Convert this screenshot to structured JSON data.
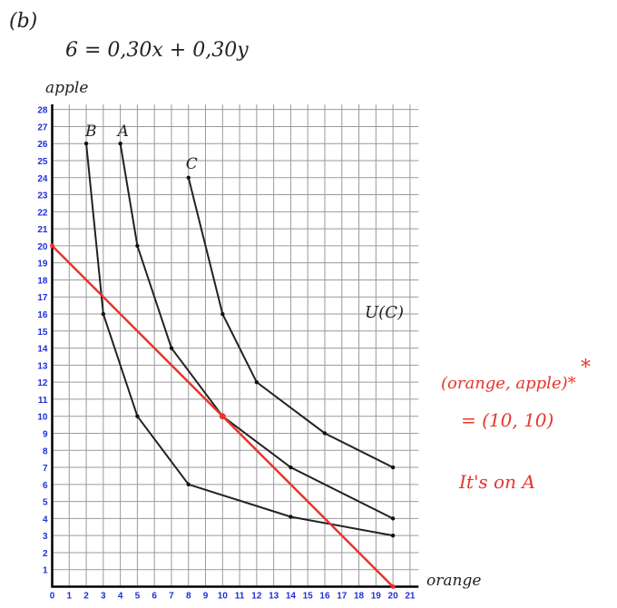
{
  "part_label": "(b)",
  "equation": "6 = 0,30x + 0,30y",
  "annotations": {
    "curve_c_label": "U(C)",
    "optimum_line1": "(orange, apple)*",
    "optimum_line2": "= (10, 10)",
    "conclusion": "It's on A"
  },
  "colors": {
    "curves": "#222222",
    "budget": "#e8342c",
    "ticks": "#1f2fd6",
    "grid": "#9a9a9a"
  },
  "chart_data": {
    "type": "line",
    "xlabel": "orange",
    "ylabel": "apple",
    "xlim": [
      0,
      21
    ],
    "ylim": [
      0,
      28
    ],
    "grid": true,
    "xticks": [
      0,
      1,
      2,
      3,
      4,
      5,
      6,
      7,
      8,
      9,
      10,
      11,
      12,
      13,
      14,
      15,
      16,
      17,
      18,
      19,
      20,
      21
    ],
    "yticks": [
      1,
      2,
      3,
      4,
      5,
      6,
      7,
      8,
      9,
      10,
      11,
      12,
      13,
      14,
      15,
      16,
      17,
      18,
      19,
      20,
      21,
      22,
      23,
      24,
      25,
      26,
      27,
      28
    ],
    "series": [
      {
        "name": "B",
        "color": "#222222",
        "points": [
          [
            2,
            26
          ],
          [
            3,
            16
          ],
          [
            5,
            10
          ],
          [
            8,
            6
          ],
          [
            14,
            4.1
          ],
          [
            20,
            3
          ]
        ]
      },
      {
        "name": "A",
        "color": "#222222",
        "points": [
          [
            4,
            26
          ],
          [
            5,
            20
          ],
          [
            7,
            14
          ],
          [
            10,
            10
          ],
          [
            14,
            7
          ],
          [
            20,
            4
          ]
        ]
      },
      {
        "name": "C",
        "color": "#222222",
        "points": [
          [
            8,
            24
          ],
          [
            10,
            16
          ],
          [
            12,
            12
          ],
          [
            16,
            9
          ],
          [
            20,
            7
          ]
        ]
      },
      {
        "name": "",
        "color": "#e8342c",
        "points": [
          [
            0,
            20
          ],
          [
            20,
            0
          ]
        ]
      }
    ]
  }
}
